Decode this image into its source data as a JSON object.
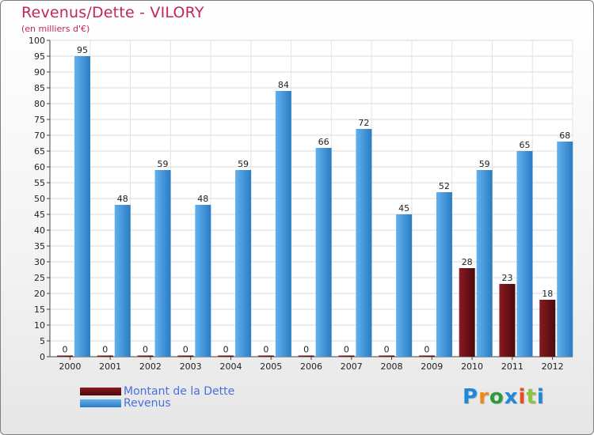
{
  "chart_data": {
    "type": "bar",
    "title": "Revenus/Dette - VILORY",
    "subtitle": "(en milliers d'€)",
    "categories": [
      "2000",
      "2001",
      "2002",
      "2003",
      "2004",
      "2005",
      "2006",
      "2007",
      "2008",
      "2009",
      "2010",
      "2011",
      "2012"
    ],
    "series": [
      {
        "name": "Montant de la Dette",
        "color": "#6e0f14",
        "values": [
          0,
          0,
          0,
          0,
          0,
          0,
          0,
          0,
          0,
          0,
          28,
          23,
          18
        ],
        "labels": [
          "0",
          "0",
          "0",
          "0",
          "0",
          "0",
          "0",
          "0",
          "0",
          "0",
          "28",
          "23",
          "18"
        ]
      },
      {
        "name": "Revenus",
        "color": "#3d94dc",
        "values": [
          95,
          48,
          59,
          48,
          59,
          84,
          66,
          72,
          45,
          52,
          59,
          65,
          68
        ],
        "labels": [
          "95",
          "48",
          "59",
          "48",
          "59",
          "84",
          "66",
          "72",
          "45",
          "52",
          "59",
          "65",
          "68"
        ]
      }
    ],
    "ylim": [
      0,
      100
    ],
    "yticks": [
      "0",
      "5",
      "10",
      "15",
      "20",
      "25",
      "30",
      "35",
      "40",
      "45",
      "50",
      "55",
      "60",
      "65",
      "70",
      "75",
      "80",
      "85",
      "90",
      "95",
      "100"
    ],
    "grid": true,
    "legend_position": "bottom-left"
  },
  "logo": {
    "letters": [
      "P",
      "r",
      "o",
      "x",
      "i",
      "t",
      "i"
    ],
    "colors": [
      "#1f88d8",
      "#f08a16",
      "#2a9d3a",
      "#1f88d8",
      "#e84c1f",
      "#8bc43f",
      "#1f88d8"
    ]
  }
}
